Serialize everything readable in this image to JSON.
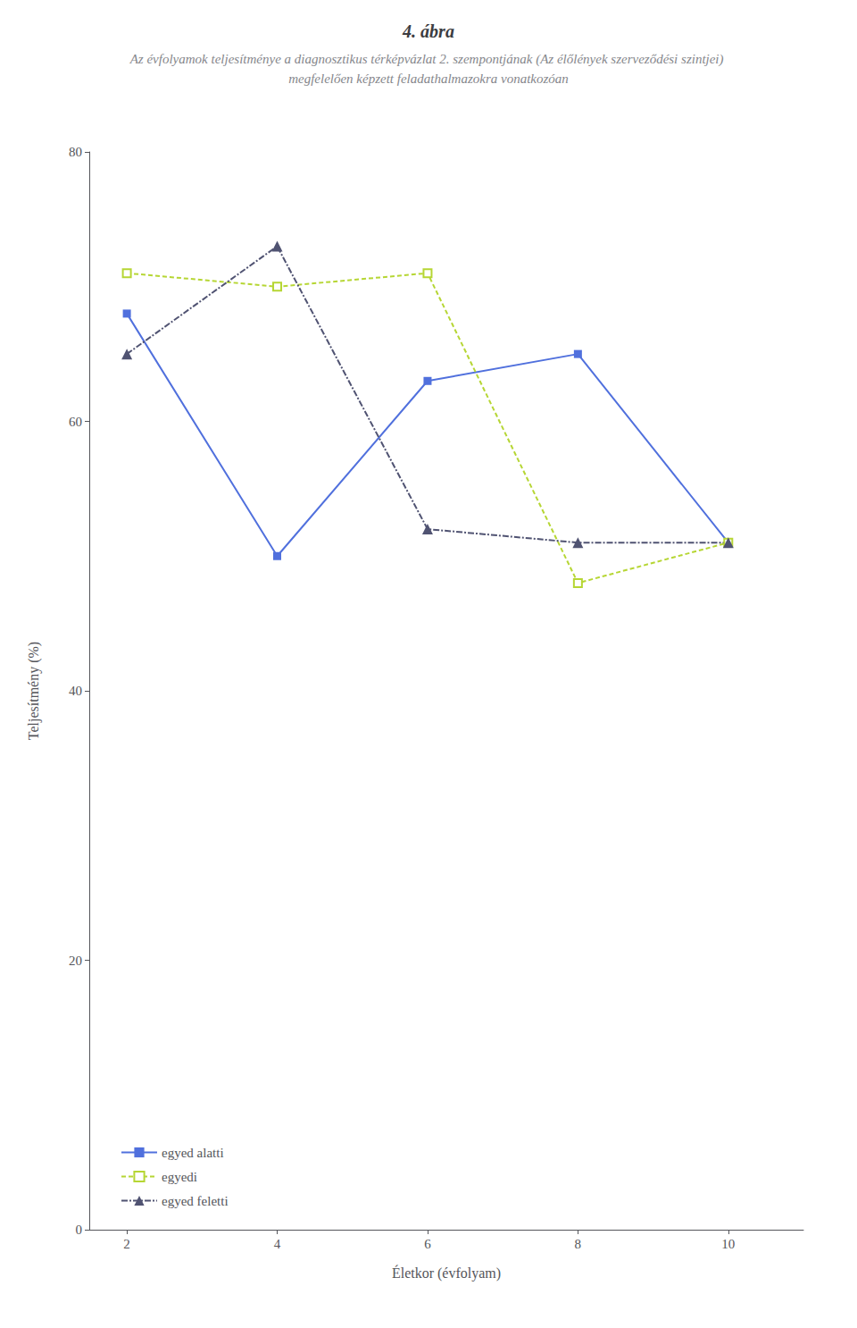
{
  "chart_data": {
    "type": "line",
    "title": "4. ábra",
    "subtitle": "Az évfolyamok teljesítménye a diagnosztikus térképvázlat 2. szempontjának (Az élőlények szerveződési szintjei) megfelelően képzett feladathalmazokra vonatkozóan",
    "x": [
      2,
      4,
      6,
      8,
      10
    ],
    "series": [
      {
        "name": "egyed alatti",
        "values": [
          68,
          50,
          63,
          65,
          51
        ],
        "marker": "square",
        "line_style": "solid"
      },
      {
        "name": "egyedi",
        "values": [
          71,
          70,
          71,
          48,
          51
        ],
        "marker": "open_square",
        "line_style": "dashed"
      },
      {
        "name": "egyed feletti",
        "values": [
          65,
          73,
          52,
          51,
          51
        ],
        "marker": "triangle",
        "line_style": "dashdot"
      }
    ],
    "xlabel": "Életkor (évfolyam)",
    "ylabel": "Teljesítmény (%)",
    "xlim": [
      1.5,
      11
    ],
    "xticks": [
      2,
      4,
      6,
      8,
      10
    ],
    "ylim": [
      0,
      80
    ],
    "yticks": [
      0,
      20,
      40,
      60,
      80
    ],
    "grid": false,
    "legend": "lower left"
  }
}
